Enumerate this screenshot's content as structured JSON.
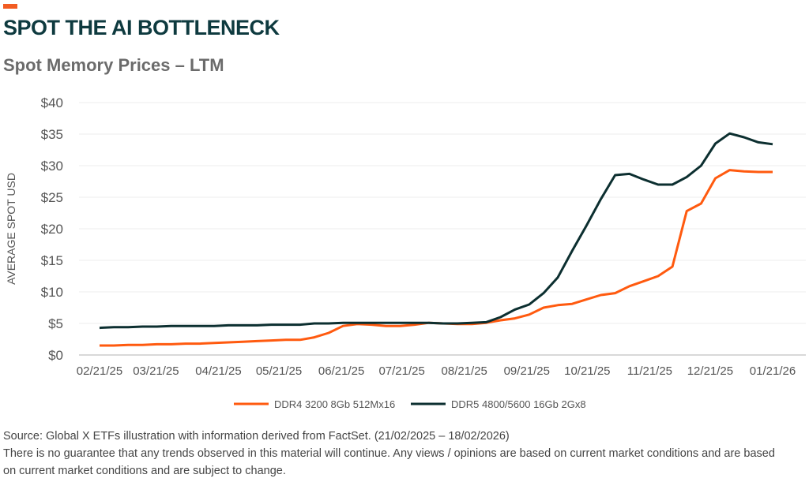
{
  "header": {
    "title": "SPOT THE AI BOTTLENECK",
    "subtitle": "Spot Memory Prices – LTM"
  },
  "colors": {
    "accent": "#F25C22",
    "ddr4": "#FF5A0F",
    "ddr5": "#0C2F30",
    "title": "#0E3A3F"
  },
  "chart_data": {
    "type": "line",
    "title": "Spot Memory Prices – LTM",
    "xlabel": "",
    "ylabel": "AVERAGE SPOT USD",
    "ylim": [
      0,
      40
    ],
    "yticks": [
      0,
      5,
      10,
      15,
      20,
      25,
      30,
      35,
      40
    ],
    "ytick_labels": [
      "$0",
      "$5",
      "$10",
      "$15",
      "$20",
      "$25",
      "$30",
      "$35",
      "$40"
    ],
    "x_unit": "days since 02/21/25",
    "xticks": [
      0,
      28,
      59,
      89,
      120,
      150,
      181,
      212,
      242,
      273,
      303,
      334
    ],
    "xtick_labels": [
      "02/21/25",
      "03/21/25",
      "04/21/25",
      "05/21/25",
      "06/21/25",
      "07/21/25",
      "08/21/25",
      "09/21/25",
      "10/21/25",
      "11/21/25",
      "12/21/25",
      "01/21/26"
    ],
    "grid": true,
    "legend": "bottom-center",
    "x_step_days": 7,
    "series": [
      {
        "name": "DDR4 3200 8Gb 512Mx16",
        "color": "#FF5A0F",
        "values": [
          1.5,
          1.5,
          1.6,
          1.6,
          1.7,
          1.7,
          1.8,
          1.8,
          1.9,
          2.0,
          2.1,
          2.2,
          2.3,
          2.4,
          2.4,
          2.8,
          3.5,
          4.6,
          4.9,
          4.8,
          4.6,
          4.6,
          4.8,
          5.1,
          5.0,
          4.9,
          4.9,
          5.1,
          5.5,
          5.8,
          6.4,
          7.5,
          7.9,
          8.1,
          8.8,
          9.5,
          9.8,
          10.9,
          11.7,
          12.5,
          14.0,
          22.8,
          24.0,
          28.0,
          29.3,
          29.1,
          29.0,
          29.0
        ]
      },
      {
        "name": "DDR5 4800/5600 16Gb 2Gx8",
        "color": "#0C2F30",
        "values": [
          4.3,
          4.4,
          4.4,
          4.5,
          4.5,
          4.6,
          4.6,
          4.6,
          4.6,
          4.7,
          4.7,
          4.7,
          4.8,
          4.8,
          4.8,
          5.0,
          5.0,
          5.1,
          5.1,
          5.1,
          5.1,
          5.1,
          5.1,
          5.1,
          5.0,
          5.0,
          5.1,
          5.2,
          6.0,
          7.2,
          8.0,
          9.8,
          12.3,
          16.5,
          20.5,
          24.7,
          28.5,
          28.7,
          27.8,
          27.0,
          27.0,
          28.2,
          30.0,
          33.5,
          35.1,
          34.5,
          33.7,
          33.4
        ]
      }
    ]
  },
  "footer": {
    "source": "Source: Global X ETFs illustration with information derived from FactSet. (21/02/2025 – 18/02/2026)",
    "disclaimer_1": "There is no guarantee that any trends observed in this material will continue. Any views / opinions are based on current market conditions and are based",
    "disclaimer_2": "on current market conditions and are subject to change."
  }
}
